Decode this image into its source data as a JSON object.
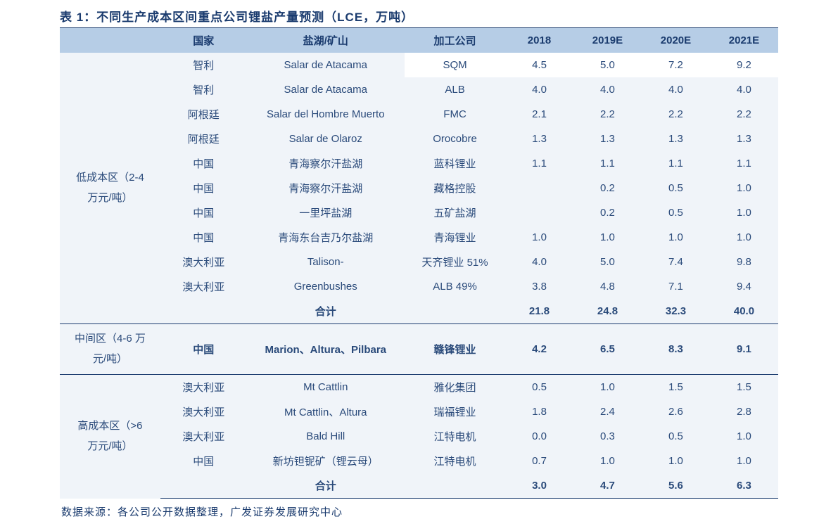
{
  "title": "表 1：不同生产成本区间重点公司锂盐产量预测（LCE，万吨）",
  "columns": {
    "category": "",
    "country": "国家",
    "mine": "盐湖/矿山",
    "company": "加工公司",
    "y2018": "2018",
    "y2019": "2019E",
    "y2020": "2020E",
    "y2021": "2021E"
  },
  "sections": [
    {
      "label_l1": "低成本区（2-4",
      "label_l2": "万元/吨）",
      "rows": [
        {
          "country": "智利",
          "mine": "Salar de Atacama",
          "company": "SQM",
          "y2018": "4.5",
          "y2019": "5.0",
          "y2020": "7.2",
          "y2021": "9.2",
          "highlight": true
        },
        {
          "country": "智利",
          "mine": "Salar de Atacama",
          "company": "ALB",
          "y2018": "4.0",
          "y2019": "4.0",
          "y2020": "4.0",
          "y2021": "4.0"
        },
        {
          "country": "阿根廷",
          "mine": "Salar del Hombre Muerto",
          "company": "FMC",
          "y2018": "2.1",
          "y2019": "2.2",
          "y2020": "2.2",
          "y2021": "2.2"
        },
        {
          "country": "阿根廷",
          "mine": "Salar de Olaroz",
          "company": "Orocobre",
          "y2018": "1.3",
          "y2019": "1.3",
          "y2020": "1.3",
          "y2021": "1.3"
        },
        {
          "country": "中国",
          "mine": "青海察尔汗盐湖",
          "company": "蓝科锂业",
          "y2018": "1.1",
          "y2019": "1.1",
          "y2020": "1.1",
          "y2021": "1.1"
        },
        {
          "country": "中国",
          "mine": "青海察尔汗盐湖",
          "company": "藏格控股",
          "y2018": "",
          "y2019": "0.2",
          "y2020": "0.5",
          "y2021": "1.0"
        },
        {
          "country": "中国",
          "mine": "一里坪盐湖",
          "company": "五矿盐湖",
          "y2018": "",
          "y2019": "0.2",
          "y2020": "0.5",
          "y2021": "1.0"
        },
        {
          "country": "中国",
          "mine": "青海东台吉乃尔盐湖",
          "company": "青海锂业",
          "y2018": "1.0",
          "y2019": "1.0",
          "y2020": "1.0",
          "y2021": "1.0"
        },
        {
          "country": "澳大利亚",
          "mine": "Talison-",
          "company": "天齐锂业 51%",
          "y2018": "4.0",
          "y2019": "5.0",
          "y2020": "7.4",
          "y2021": "9.8"
        },
        {
          "country": "澳大利亚",
          "mine": "Greenbushes",
          "company": "ALB 49%",
          "y2018": "3.8",
          "y2019": "4.8",
          "y2020": "7.1",
          "y2021": "9.4"
        }
      ],
      "subtotal": {
        "country": "",
        "mine": "合计",
        "company": "",
        "y2018": "21.8",
        "y2019": "24.8",
        "y2020": "32.3",
        "y2021": "40.0"
      }
    },
    {
      "label_l1": "中间区（4-6 万",
      "label_l2": "元/吨）",
      "rows": [
        {
          "country": "中国",
          "mine": "Marion、Altura、Pilbara",
          "company": "赣锋锂业",
          "y2018": "4.2",
          "y2019": "6.5",
          "y2020": "8.3",
          "y2021": "9.1",
          "bold": true
        }
      ]
    },
    {
      "label_l1": "高成本区（>6",
      "label_l2": "万元/吨）",
      "rows": [
        {
          "country": "澳大利亚",
          "mine": "Mt Cattlin",
          "company": "雅化集团",
          "y2018": "0.5",
          "y2019": "1.0",
          "y2020": "1.5",
          "y2021": "1.5"
        },
        {
          "country": "澳大利亚",
          "mine": "Mt Cattlin、Altura",
          "company": "瑞福锂业",
          "y2018": "1.8",
          "y2019": "2.4",
          "y2020": "2.6",
          "y2021": "2.8"
        },
        {
          "country": "澳大利亚",
          "mine": "Bald Hill",
          "company": "江特电机",
          "y2018": "0.0",
          "y2019": "0.3",
          "y2020": "0.5",
          "y2021": "1.0"
        },
        {
          "country": "中国",
          "mine": "新坊钽铌矿（锂云母）",
          "company": "江特电机",
          "y2018": "0.7",
          "y2019": "1.0",
          "y2020": "1.0",
          "y2021": "1.0"
        }
      ],
      "subtotal": {
        "country": "",
        "mine": "合计",
        "company": "",
        "y2018": "3.0",
        "y2019": "4.7",
        "y2020": "5.6",
        "y2021": "6.3"
      }
    }
  ],
  "source": "数据来源：各公司公开数据整理，广发证券发展研究中心",
  "style": {
    "header_bg": "#b6cde6",
    "border_color": "#1a3b6e",
    "text_color": "#2a4a7a",
    "title_color": "#1a3b6e",
    "body_bg": "#f0f4f9",
    "highlight_bg": "#ffffff",
    "title_fontsize": 17,
    "cell_fontsize": 15
  }
}
